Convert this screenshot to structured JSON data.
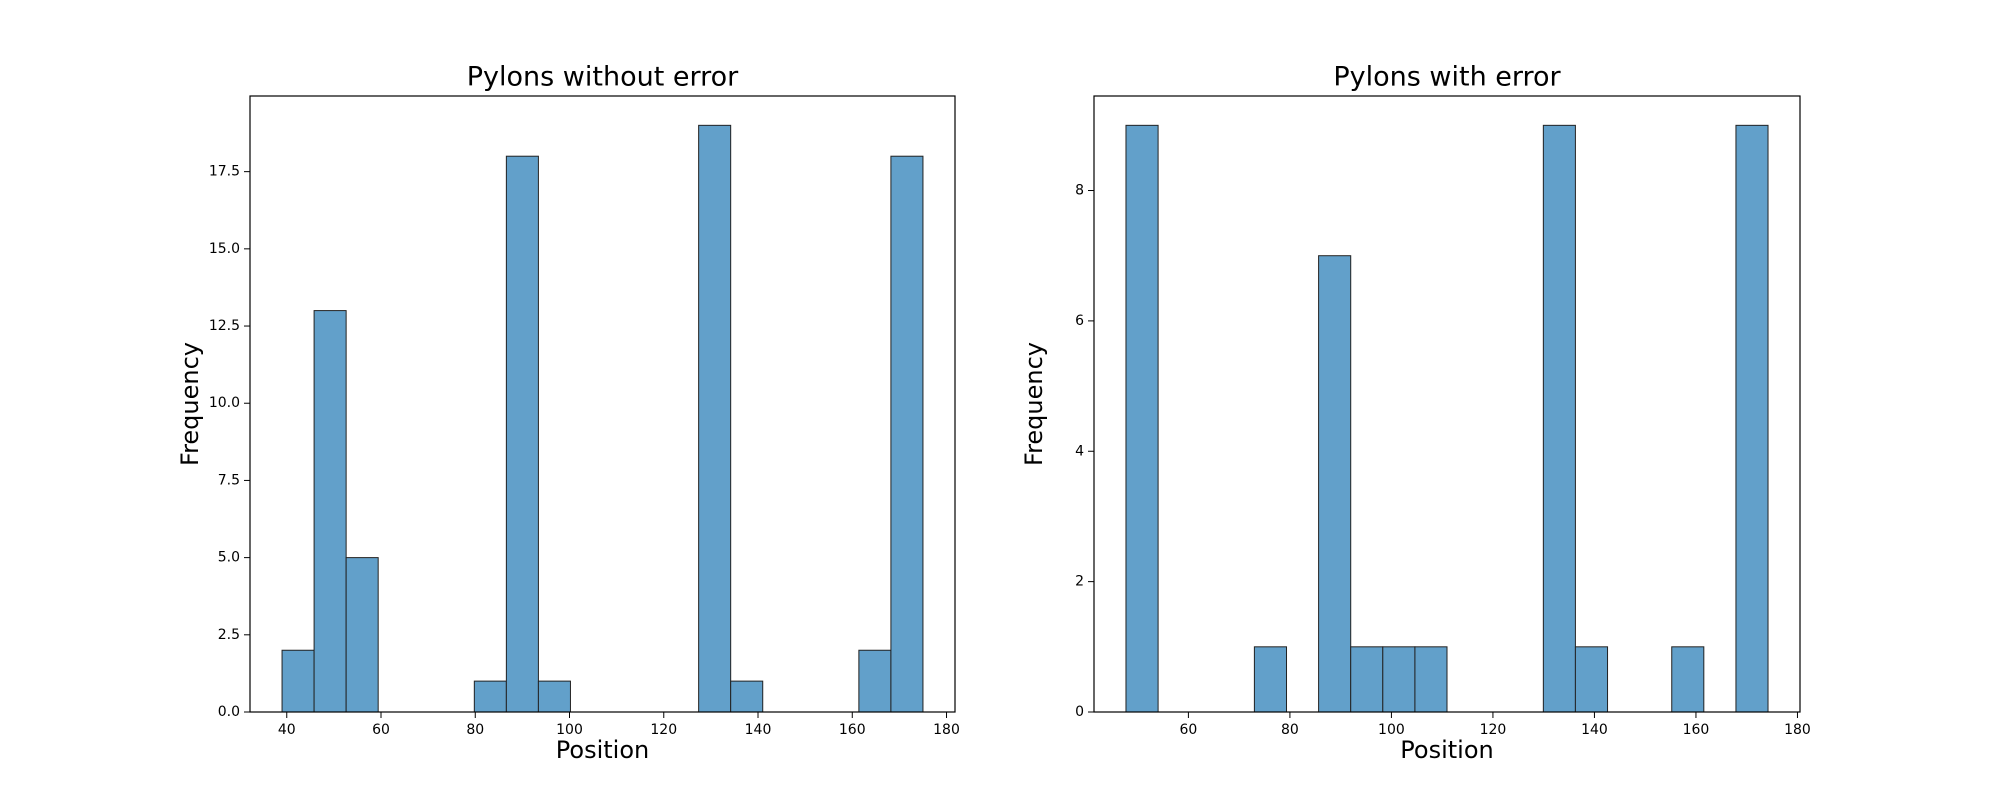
{
  "chart_data": [
    {
      "type": "histogram",
      "title": "Pylons without error",
      "xlabel": "Position",
      "ylabel": "Frequency",
      "bins": [
        39,
        45.8,
        52.6,
        59.4,
        66.2,
        73,
        79.8,
        86.6,
        93.4,
        100.2,
        107,
        113.8,
        120.6,
        127.4,
        134.2,
        141,
        147.8,
        154.6,
        161.4,
        168.2,
        175
      ],
      "values": [
        2,
        13,
        5,
        0,
        0,
        0,
        1,
        18,
        1,
        0,
        0,
        0,
        0,
        19,
        1,
        0,
        0,
        0,
        2,
        18
      ],
      "color": "#62a0ca",
      "xlim": [
        32.2,
        181.8
      ],
      "xticks": [
        40,
        60,
        80,
        100,
        120,
        140,
        160,
        180
      ],
      "ylim": [
        0,
        19.95
      ],
      "yticks": [
        {
          "value": 0,
          "label": "0.0"
        },
        {
          "value": 2.5,
          "label": "2.5"
        },
        {
          "value": 5,
          "label": "5.0"
        },
        {
          "value": 7.5,
          "label": "7.5"
        },
        {
          "value": 10,
          "label": "10.0"
        },
        {
          "value": 12.5,
          "label": "12.5"
        },
        {
          "value": 15,
          "label": "15.0"
        },
        {
          "value": 17.5,
          "label": "17.5"
        }
      ]
    },
    {
      "type": "histogram",
      "title": "Pylons with error",
      "xlabel": "Position",
      "ylabel": "Frequency",
      "bins": [
        47.7,
        54.03,
        60.35,
        66.68,
        73.0,
        79.33,
        85.65,
        91.98,
        98.3,
        104.63,
        110.95,
        117.28,
        123.6,
        129.93,
        136.25,
        142.58,
        148.9,
        155.23,
        161.55,
        167.88,
        174.2
      ],
      "values": [
        9,
        0,
        0,
        0,
        1,
        0,
        7,
        1,
        1,
        1,
        0,
        0,
        0,
        9,
        1,
        0,
        0,
        1,
        0,
        9
      ],
      "color": "#62a0ca",
      "xlim": [
        41.4,
        180.5
      ],
      "xticks": [
        60,
        80,
        100,
        120,
        140,
        160,
        180
      ],
      "ylim": [
        0,
        9.45
      ],
      "yticks": [
        0,
        2,
        4,
        6,
        8
      ]
    }
  ]
}
